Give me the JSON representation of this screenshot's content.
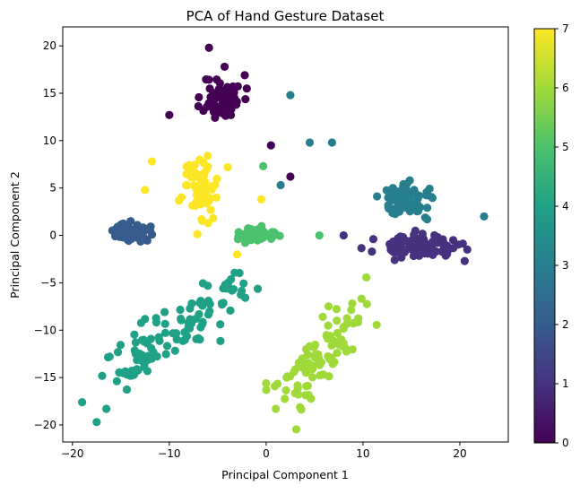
{
  "chart_data": {
    "type": "scatter",
    "title": "PCA of Hand Gesture Dataset",
    "xlabel": "Principal Component 1",
    "ylabel": "Principal Component 2",
    "xlim": [
      -21,
      25
    ],
    "ylim": [
      -21.8,
      22
    ],
    "xticks": [
      -20,
      -10,
      0,
      10,
      20
    ],
    "yticks": [
      -20,
      -15,
      -10,
      -5,
      0,
      5,
      10,
      15,
      20
    ],
    "grid": false,
    "colormap": "viridis",
    "colorbar": {
      "min": 0,
      "max": 7,
      "ticks": [
        0,
        1,
        2,
        3,
        4,
        5,
        6,
        7
      ]
    },
    "colors": [
      "#440154",
      "#46327e",
      "#365c8d",
      "#277f8e",
      "#1fa187",
      "#4ac16d",
      "#a0da39",
      "#fde725"
    ],
    "clusters": [
      {
        "label": 0,
        "center": [
          -4.5,
          14.5
        ],
        "spread": [
          1.8,
          2.2
        ],
        "count": 70,
        "seed": 11
      },
      {
        "label": 1,
        "center": [
          15.5,
          -1.2
        ],
        "spread": [
          3.8,
          1.0
        ],
        "count": 90,
        "seed": 23
      },
      {
        "label": 2,
        "center": [
          -13.8,
          0.3
        ],
        "spread": [
          1.6,
          0.9
        ],
        "count": 65,
        "seed": 37
      },
      {
        "label": 3,
        "center": [
          14.8,
          3.8
        ],
        "spread": [
          2.6,
          1.5
        ],
        "count": 70,
        "seed": 41
      },
      {
        "label": 4,
        "center": [
          -10,
          -10
        ],
        "spread": [
          4.2,
          3.0
        ],
        "count": 110,
        "seed": 53,
        "shape": "band",
        "from": [
          -17,
          -15
        ],
        "to": [
          -2,
          -5
        ]
      },
      {
        "label": 5,
        "center": [
          -1,
          0
        ],
        "spread": [
          2.0,
          0.7
        ],
        "count": 55,
        "seed": 67
      },
      {
        "label": 6,
        "center": [
          6.5,
          -11.5
        ],
        "spread": [
          2.2,
          2.6
        ],
        "count": 90,
        "seed": 79,
        "shape": "band",
        "from": [
          2,
          -17
        ],
        "to": [
          10,
          -7
        ]
      },
      {
        "label": 7,
        "center": [
          -7,
          5
        ],
        "spread": [
          1.8,
          3.0
        ],
        "count": 80,
        "seed": 97
      }
    ],
    "extra_points": [
      {
        "label": 3,
        "points": [
          [
            22.5,
            2
          ],
          [
            2.5,
            14.8
          ],
          [
            4.5,
            9.8
          ],
          [
            6.8,
            9.8
          ],
          [
            1.5,
            5.3
          ]
        ]
      },
      {
        "label": 0,
        "points": [
          [
            -10,
            12.7
          ],
          [
            2.5,
            6.2
          ],
          [
            -5.9,
            19.8
          ],
          [
            -2,
            15.5
          ],
          [
            0.5,
            9.5
          ]
        ]
      },
      {
        "label": 4,
        "points": [
          [
            -19,
            -17.6
          ],
          [
            -17.5,
            -19.7
          ],
          [
            -16.5,
            -18.3
          ]
        ]
      },
      {
        "label": 7,
        "points": [
          [
            -11.8,
            7.8
          ],
          [
            -12.5,
            4.8
          ],
          [
            -3,
            -2
          ],
          [
            -0.5,
            3.8
          ]
        ]
      },
      {
        "label": 5,
        "points": [
          [
            -0.3,
            7.3
          ],
          [
            5.5,
            0
          ]
        ]
      },
      {
        "label": 6,
        "points": [
          [
            0,
            -15.6
          ],
          [
            1,
            -18.3
          ]
        ]
      },
      {
        "label": 1,
        "points": [
          [
            20.5,
            -2.7
          ],
          [
            8,
            0
          ]
        ]
      }
    ]
  }
}
